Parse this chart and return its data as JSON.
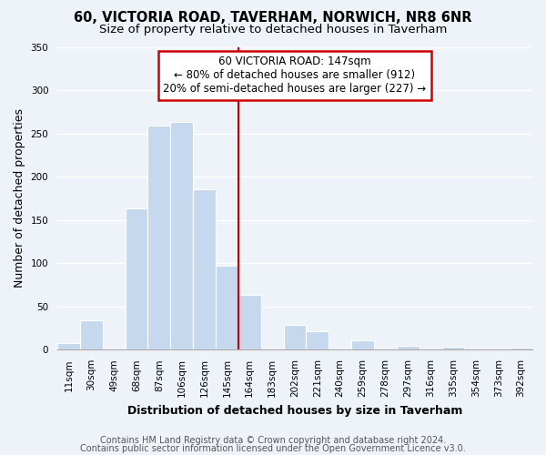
{
  "title": "60, VICTORIA ROAD, TAVERHAM, NORWICH, NR8 6NR",
  "subtitle": "Size of property relative to detached houses in Taverham",
  "xlabel": "Distribution of detached houses by size in Taverham",
  "ylabel": "Number of detached properties",
  "categories": [
    "11sqm",
    "30sqm",
    "49sqm",
    "68sqm",
    "87sqm",
    "106sqm",
    "126sqm",
    "145sqm",
    "164sqm",
    "183sqm",
    "202sqm",
    "221sqm",
    "240sqm",
    "259sqm",
    "278sqm",
    "297sqm",
    "316sqm",
    "335sqm",
    "354sqm",
    "373sqm",
    "392sqm"
  ],
  "values": [
    8,
    34,
    0,
    163,
    259,
    263,
    185,
    97,
    63,
    0,
    29,
    21,
    0,
    11,
    0,
    5,
    0,
    4,
    0,
    0,
    2
  ],
  "bar_color": "#c5d8ed",
  "bar_edge_color": "#c5d8ed",
  "vline_color": "#cc0000",
  "vline_x": 7.5,
  "annotation_text": "60 VICTORIA ROAD: 147sqm\n← 80% of detached houses are smaller (912)\n20% of semi-detached houses are larger (227) →",
  "ylim": [
    0,
    350
  ],
  "yticks": [
    0,
    50,
    100,
    150,
    200,
    250,
    300,
    350
  ],
  "footer_line1": "Contains HM Land Registry data © Crown copyright and database right 2024.",
  "footer_line2": "Contains public sector information licensed under the Open Government Licence v3.0.",
  "bg_color": "#eef2f9",
  "title_fontsize": 10.5,
  "subtitle_fontsize": 9.5,
  "axis_label_fontsize": 9,
  "tick_fontsize": 7.5,
  "footer_fontsize": 7,
  "annot_fontsize": 8.5
}
